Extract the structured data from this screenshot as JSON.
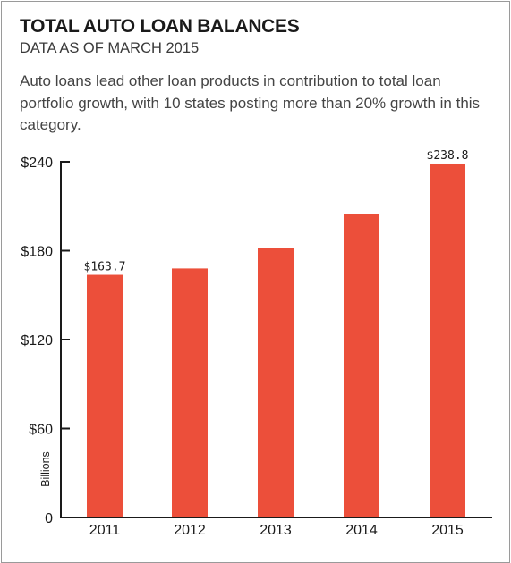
{
  "header": {
    "title": "TOTAL AUTO LOAN BALANCES",
    "subtitle": "DATA AS OF MARCH 2015",
    "description": "Auto loans lead other loan products in contribution to total loan portfolio growth, with 10 states posting more than 20% growth in this category."
  },
  "colors": {
    "bar": "#ec4f3a",
    "axis": "#1a1a1a"
  },
  "chart_data": {
    "type": "bar",
    "categories": [
      "2011",
      "2012",
      "2013",
      "2014",
      "2015"
    ],
    "values": [
      163.7,
      168.0,
      182.0,
      205.0,
      238.8
    ],
    "data_labels": [
      "$163.7",
      "",
      "",
      "",
      "$238.8"
    ],
    "title": "TOTAL AUTO LOAN BALANCES",
    "subtitle": "DATA AS OF MARCH 2015",
    "xlabel": "",
    "ylabel": "Billions",
    "ylim": [
      0,
      240
    ],
    "y_ticks": [
      0,
      60,
      120,
      180,
      240
    ],
    "y_tick_labels": [
      "0",
      "$60",
      "$120",
      "$180",
      "$240"
    ],
    "grid": false,
    "legend": "none"
  }
}
